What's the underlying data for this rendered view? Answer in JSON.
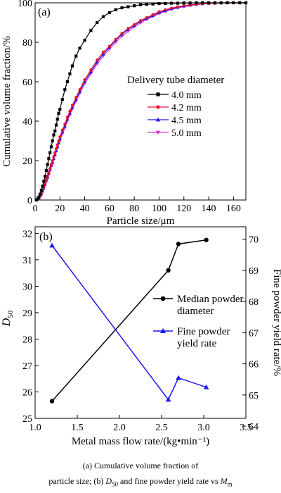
{
  "chart_data": [
    {
      "type": "line",
      "panel_label": "(a)",
      "xlabel": "Particle size/μm",
      "ylabel": "Cumulative volume fraction/%",
      "xlim": [
        0,
        170
      ],
      "ylim": [
        0,
        100
      ],
      "xticks": [
        0,
        20,
        40,
        60,
        80,
        100,
        120,
        140,
        160
      ],
      "yticks": [
        0,
        20,
        40,
        60,
        80,
        100
      ],
      "legend_title": "Delivery tube diameter",
      "legend_position": "center-right",
      "grid": false,
      "x": [
        1,
        2,
        3,
        4,
        5,
        6,
        7,
        8,
        9,
        10,
        11,
        12,
        13,
        14,
        15,
        16,
        17,
        18,
        19,
        20,
        22,
        24,
        26,
        28,
        30,
        33,
        36,
        40,
        45,
        50,
        55,
        60,
        65,
        70,
        75,
        80,
        85,
        90,
        95,
        100,
        105,
        110,
        115,
        120,
        125,
        130,
        135,
        140,
        145,
        150,
        155,
        160,
        165,
        170
      ],
      "series": [
        {
          "name": "4.0 mm",
          "color": "#000000",
          "marker": "square",
          "values": [
            0.0,
            0.5,
            1.5,
            3.0,
            5.0,
            7.0,
            9.5,
            12.0,
            15.0,
            18.0,
            21.0,
            24.0,
            27.0,
            30.0,
            33.0,
            35.0,
            38.0,
            41.0,
            44.0,
            46.0,
            51.0,
            56.0,
            60.0,
            64.0,
            68.0,
            73.0,
            77.0,
            81.0,
            86.0,
            90.0,
            93.0,
            95.0,
            96.5,
            97.5,
            98.0,
            98.5,
            99.0,
            99.2,
            99.4,
            99.6,
            99.7,
            99.8,
            99.8,
            99.9,
            99.9,
            100.0,
            100.0,
            100.0,
            100.0,
            100.0,
            100.0,
            100.0,
            100.0,
            100.0
          ]
        },
        {
          "name": "4.2 mm",
          "color": "#e8102a",
          "marker": "circle",
          "values": [
            0.0,
            0.5,
            1.0,
            2.0,
            3.5,
            5.0,
            6.5,
            8.5,
            10.5,
            12.0,
            14.0,
            16.0,
            18.0,
            20.0,
            22.0,
            24.0,
            26.0,
            28.0,
            30.0,
            32.0,
            35.5,
            38.5,
            42.0,
            45.0,
            48.0,
            52.0,
            56.0,
            61.0,
            66.0,
            71.0,
            75.0,
            78.0,
            81.5,
            84.5,
            87.0,
            89.0,
            91.0,
            92.5,
            94.0,
            95.5,
            96.5,
            97.3,
            98.0,
            98.5,
            99.0,
            99.3,
            99.5,
            99.7,
            99.8,
            99.9,
            100.0,
            100.0,
            100.0,
            100.0
          ]
        },
        {
          "name": "4.5 mm",
          "color": "#1a1aee",
          "marker": "triangle-up",
          "values": [
            0.0,
            0.5,
            1.0,
            2.0,
            3.0,
            4.5,
            6.0,
            8.0,
            10.0,
            11.5,
            13.5,
            15.5,
            17.5,
            19.0,
            21.0,
            23.0,
            25.0,
            27.0,
            29.0,
            31.0,
            34.5,
            37.5,
            41.0,
            44.0,
            47.0,
            51.0,
            55.0,
            60.0,
            65.0,
            70.0,
            74.0,
            77.5,
            81.0,
            84.0,
            86.5,
            88.5,
            90.5,
            92.0,
            93.5,
            95.0,
            96.0,
            97.0,
            97.7,
            98.3,
            98.8,
            99.2,
            99.5,
            99.7,
            99.8,
            99.9,
            100.0,
            100.0,
            100.0,
            100.0
          ]
        },
        {
          "name": "5.0 mm",
          "color": "#dd33dd",
          "marker": "triangle-down",
          "values": [
            0.0,
            0.5,
            1.0,
            1.8,
            3.0,
            4.5,
            6.0,
            7.5,
            9.5,
            11.0,
            13.0,
            15.0,
            17.0,
            18.5,
            20.5,
            22.5,
            24.5,
            26.5,
            28.5,
            30.0,
            33.5,
            36.5,
            40.0,
            43.0,
            46.0,
            50.0,
            54.0,
            59.0,
            64.0,
            69.0,
            73.0,
            76.5,
            80.0,
            83.0,
            85.5,
            87.8,
            89.8,
            91.5,
            93.0,
            94.5,
            95.6,
            96.6,
            97.4,
            98.0,
            98.6,
            99.0,
            99.4,
            99.6,
            99.8,
            99.9,
            100.0,
            100.0,
            100.0,
            100.0
          ]
        }
      ]
    },
    {
      "type": "line",
      "panel_label": "(b)",
      "xlabel": "Metal mass flow rate/(kg•min⁻¹)",
      "ylabel_left_main": "D",
      "ylabel_left_sub": "50",
      "ylabel_right": "Fine powder yield rate/%",
      "xlim": [
        1.0,
        3.5
      ],
      "ylim_left": [
        25,
        32.25
      ],
      "ylim_right": [
        64.25,
        70.4
      ],
      "xticks": [
        "1.0",
        "1.5",
        "2.0",
        "2.5",
        "3.0",
        "3.5"
      ],
      "yticks_left": [
        "25",
        "26",
        "27",
        "28",
        "29",
        "30",
        "31",
        "32"
      ],
      "yticks_right": [
        "64",
        "65",
        "66",
        "67",
        "68",
        "69",
        "70"
      ],
      "legend_position": "right",
      "grid": false,
      "series": [
        {
          "name_lines": [
            "Median powder",
            "diameter"
          ],
          "axis": "left",
          "color": "#000000",
          "marker": "circle",
          "x": [
            1.2,
            2.58,
            2.7,
            3.03
          ],
          "values": [
            25.65,
            30.6,
            31.6,
            31.75
          ]
        },
        {
          "name_lines": [
            "Fine powder",
            "yield rate"
          ],
          "axis": "right",
          "color": "#1a1aee",
          "marker": "triangle-up",
          "x": [
            1.2,
            2.58,
            2.7,
            3.03
          ],
          "values": [
            69.8,
            64.85,
            65.55,
            65.25
          ]
        }
      ]
    }
  ],
  "caption": {
    "line1": "(a) Cumulative volume fraction of",
    "line2_pre": "particle size; (b) ",
    "line2_d": "D",
    "line2_dsub": "50",
    "line2_mid": " and fine powder yield rate vs ",
    "line2_m": "M",
    "line2_msub": "m"
  }
}
